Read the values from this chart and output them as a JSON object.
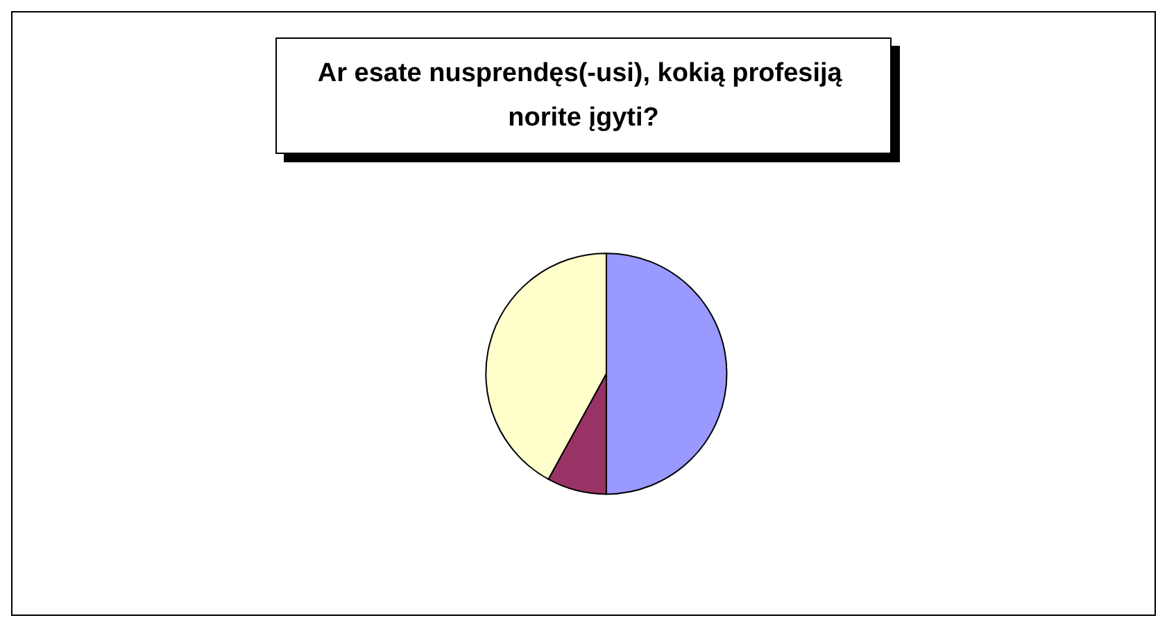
{
  "chart_data": {
    "type": "pie",
    "title": "Ar esate nusprendęs(-usi), kokią profesiją norite įgyti?",
    "categories": [
      null,
      null,
      null
    ],
    "values": [
      50,
      8,
      42
    ],
    "colors": [
      "#9999ff",
      "#993366",
      "#ffffcc"
    ]
  }
}
